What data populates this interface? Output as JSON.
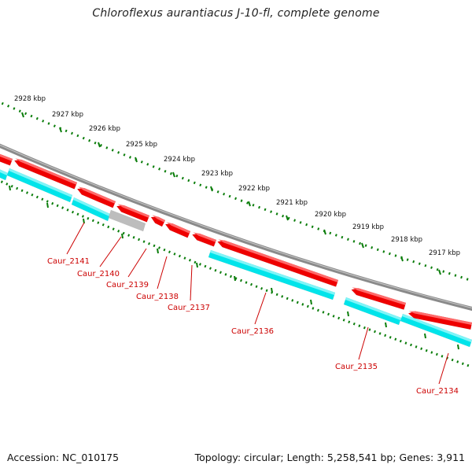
{
  "title": "Chloroflexus aurantiacus J-10-fl, complete genome",
  "footer": {
    "accession": "Accession: NC_010175",
    "summary": "Topology: circular; Length: 5,258,541 bp; Genes: 3,911"
  },
  "colors": {
    "backbone": "#8a8a8a",
    "forward_gene": "#ee0000",
    "reverse_gene": "#00e4ea",
    "pseudo_gene": "#bdbdbd",
    "gc_track": "#0a7d0a",
    "gene_label": "#cc0000"
  },
  "kbp_ticks": [
    {
      "label": "2928 kbp",
      "kbp": 2928
    },
    {
      "label": "2927 kbp",
      "kbp": 2927
    },
    {
      "label": "2926 kbp",
      "kbp": 2926
    },
    {
      "label": "2925 kbp",
      "kbp": 2925
    },
    {
      "label": "2924 kbp",
      "kbp": 2924
    },
    {
      "label": "2923 kbp",
      "kbp": 2923
    },
    {
      "label": "2922 kbp",
      "kbp": 2922
    },
    {
      "label": "2921 kbp",
      "kbp": 2921
    },
    {
      "label": "2920 kbp",
      "kbp": 2920
    },
    {
      "label": "2919 kbp",
      "kbp": 2919
    },
    {
      "label": "2918 kbp",
      "kbp": 2918
    },
    {
      "label": "2917 kbp",
      "kbp": 2917
    }
  ],
  "genes": [
    {
      "label": "Caur_2141"
    },
    {
      "label": "Caur_2140"
    },
    {
      "label": "Caur_2139"
    },
    {
      "label": "Caur_2138"
    },
    {
      "label": "Caur_2137"
    },
    {
      "label": "Caur_2136"
    },
    {
      "label": "Caur_2135"
    },
    {
      "label": "Caur_2134"
    }
  ]
}
